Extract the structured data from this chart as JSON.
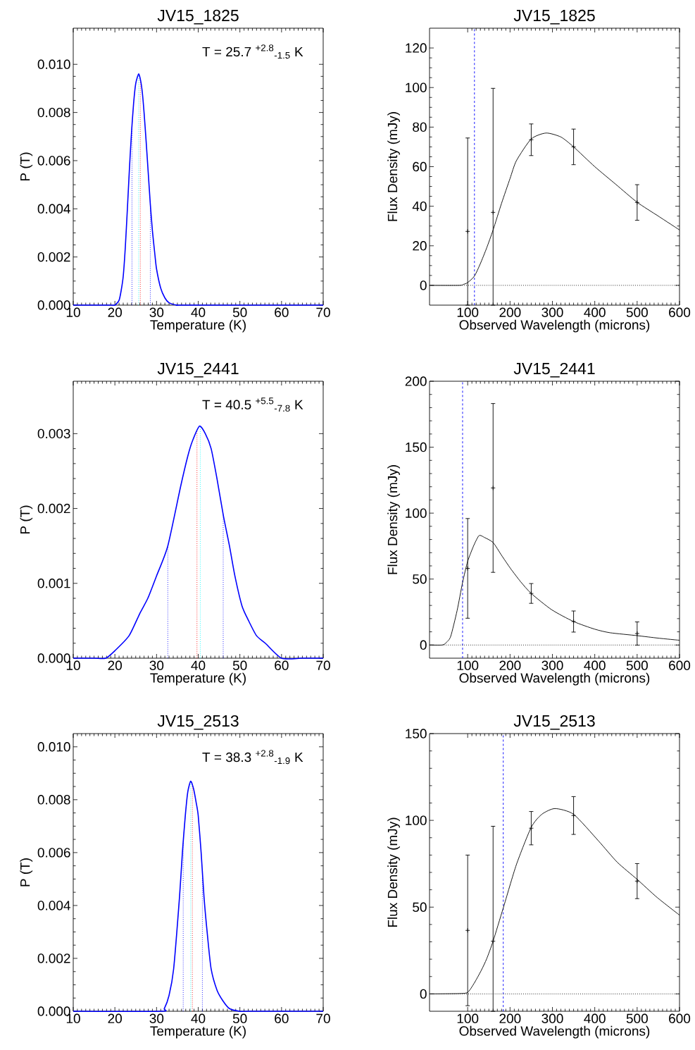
{
  "chart_data": [
    {
      "type": "line",
      "title": "JV15_1825",
      "xlabel": "Temperature (K)",
      "ylabel": "P (T)",
      "xlim": [
        10,
        70
      ],
      "ylim": [
        0,
        0.0115
      ],
      "xticks": [
        10,
        20,
        30,
        40,
        50,
        60,
        70
      ],
      "yticks": [
        {
          "value": 0,
          "label": "0.000"
        },
        {
          "value": 0.002,
          "label": "0.002"
        },
        {
          "value": 0.004,
          "label": "0.004"
        },
        {
          "value": 0.006,
          "label": "0.006"
        },
        {
          "value": 0.008,
          "label": "0.008"
        },
        {
          "value": 0.01,
          "label": "0.010"
        }
      ],
      "annotations": [
        "T = 25.7 $^{+2.8}$$_{-1.5}$ K"
      ],
      "series": [
        {
          "color": "#0000ff",
          "x": [
            10,
            19,
            20,
            21,
            21.5,
            22,
            22.5,
            23,
            23.5,
            24,
            24.5,
            25,
            25.7,
            26.2,
            26.6,
            27,
            27.5,
            28,
            28.5,
            29,
            29.6,
            30,
            31,
            32,
            33,
            35,
            37,
            70
          ],
          "values": [
            0,
            0,
            0,
            0.0002,
            0.0006,
            0.0012,
            0.0024,
            0.004,
            0.0057,
            0.0072,
            0.0084,
            0.0092,
            0.0096,
            0.0093,
            0.0088,
            0.008,
            0.0068,
            0.0055,
            0.0042,
            0.0031,
            0.0021,
            0.0015,
            0.0007,
            0.0003,
            0.0001,
            0,
            0,
            0
          ]
        }
      ],
      "ref_lines": [
        {
          "axis": "x",
          "value": 24.1,
          "color": "#0000ff",
          "line_style": "dotted"
        },
        {
          "axis": "x",
          "value": 25.7,
          "color": "#00ffff",
          "line_style": "dotted"
        },
        {
          "axis": "x",
          "value": 26.1,
          "color": "#ff0000",
          "line_style": "dotted"
        },
        {
          "axis": "x",
          "value": 28.5,
          "color": "#0000ff",
          "line_style": "dotted"
        }
      ]
    },
    {
      "type": "line",
      "title": "JV15_1825",
      "xlabel": "Observed Wavelength (microns)",
      "ylabel": "Flux Density (mJy)",
      "xlim": [
        10,
        600
      ],
      "ylim": [
        -10,
        130
      ],
      "xticks": [
        100,
        200,
        300,
        400,
        500,
        600
      ],
      "yticks": [
        0,
        20,
        40,
        60,
        80,
        100,
        120
      ],
      "series": [
        {
          "type": "scatter",
          "color": "#000000",
          "marker": "cross",
          "x": [
            100,
            160,
            250,
            350,
            500
          ],
          "values": [
            27.3,
            36.9,
            73.6,
            70.0,
            41.9
          ],
          "errors": [
            [
              -10,
              74.5
            ],
            [
              -10,
              99.6
            ],
            8,
            9,
            9
          ]
        },
        {
          "color": "#000000",
          "x": [
            10,
            80,
            90,
            100,
            116,
            130,
            145,
            160,
            180,
            200,
            215,
            250,
            285,
            320,
            350,
            400,
            450,
            500,
            550,
            600
          ],
          "values": [
            0,
            0,
            0.5,
            1.4,
            4.7,
            11,
            19,
            28,
            41.5,
            54,
            63,
            74,
            77,
            75,
            70,
            60,
            51,
            42,
            35,
            28
          ]
        }
      ],
      "ref_lines": [
        {
          "axis": "x",
          "value": 116,
          "color": "#0000ff",
          "line_style": "dashed"
        },
        {
          "axis": "y",
          "value": 0,
          "color": "#000000",
          "line_style": "dotted"
        }
      ]
    },
    {
      "type": "line",
      "title": "JV15_2441",
      "xlabel": "Temperature (K)",
      "ylabel": "P (T)",
      "xlim": [
        10,
        70
      ],
      "ylim": [
        0,
        0.0037
      ],
      "xticks": [
        10,
        20,
        30,
        40,
        50,
        60,
        70
      ],
      "yticks": [
        {
          "value": 0,
          "label": "0.000"
        },
        {
          "value": 0.001,
          "label": "0.001"
        },
        {
          "value": 0.002,
          "label": "0.002"
        },
        {
          "value": 0.003,
          "label": "0.003"
        }
      ],
      "annotations": [
        "T = 40.5 $^{+5.5}$$_{-7.8}$ K"
      ],
      "series": [
        {
          "color": "#0000ff",
          "x": [
            10,
            15,
            17.8,
            20,
            23.4,
            26,
            27.9,
            30,
            32.7,
            35.8,
            37.5,
            38.6,
            40.3,
            41.7,
            43.1,
            44.5,
            46.05,
            47.5,
            48.8,
            50.5,
            52.1,
            54,
            56.1,
            60,
            65,
            70
          ],
          "values": [
            0,
            0,
            0,
            0.0001,
            0.0003,
            0.0006,
            0.0008,
            0.0011,
            0.0015,
            0.0023,
            0.0027,
            0.0029,
            0.0031,
            0.003,
            0.0028,
            0.0024,
            0.0019,
            0.0015,
            0.0011,
            0.0007,
            0.0005,
            0.0003,
            0.0002,
            0,
            0,
            0
          ]
        }
      ],
      "ref_lines": [
        {
          "axis": "x",
          "value": 32.7,
          "color": "#0000ff",
          "line_style": "dotted"
        },
        {
          "axis": "x",
          "value": 39.7,
          "color": "#ff0000",
          "line_style": "dotted"
        },
        {
          "axis": "x",
          "value": 40.5,
          "color": "#00ffff",
          "line_style": "dotted"
        },
        {
          "axis": "x",
          "value": 46.0,
          "color": "#0000ff",
          "line_style": "dotted"
        }
      ]
    },
    {
      "type": "line",
      "title": "JV15_2441",
      "xlabel": "Observed Wavelength (microns)",
      "ylabel": "Flux Density (mJy)",
      "xlim": [
        10,
        600
      ],
      "ylim": [
        -10,
        200
      ],
      "xticks": [
        100,
        200,
        300,
        400,
        500,
        600
      ],
      "yticks": [
        0,
        50,
        100,
        150,
        200
      ],
      "series": [
        {
          "type": "scatter",
          "color": "#000000",
          "marker": "cross",
          "x": [
            100,
            160,
            250,
            350,
            500
          ],
          "values": [
            58.1,
            119.1,
            39.1,
            17.8,
            8.7
          ],
          "errors": [
            37.8,
            64,
            7.5,
            8,
            8.8
          ]
        },
        {
          "color": "#000000",
          "x": [
            10,
            40,
            50,
            60,
            75,
            88,
            100,
            115,
            127,
            140,
            160,
            180,
            201,
            225,
            250,
            298,
            350,
            400,
            436,
            500,
            550,
            600
          ],
          "values": [
            0,
            0,
            2,
            6.6,
            26,
            47.4,
            63.4,
            75.9,
            83,
            81.5,
            77.7,
            68,
            58.1,
            48,
            39.1,
            26.8,
            17.8,
            12,
            9.3,
            7.1,
            5.2,
            3.6
          ]
        }
      ],
      "ref_lines": [
        {
          "axis": "x",
          "value": 88,
          "color": "#0000ff",
          "line_style": "dashed"
        },
        {
          "axis": "y",
          "value": 0,
          "color": "#000000",
          "line_style": "dotted"
        }
      ]
    },
    {
      "type": "line",
      "title": "JV15_2513",
      "xlabel": "Temperature (K)",
      "ylabel": "P (T)",
      "xlim": [
        10,
        70
      ],
      "ylim": [
        0,
        0.0105
      ],
      "xticks": [
        10,
        20,
        30,
        40,
        50,
        60,
        70
      ],
      "yticks": [
        {
          "value": 0,
          "label": "0.000"
        },
        {
          "value": 0.002,
          "label": "0.002"
        },
        {
          "value": 0.004,
          "label": "0.004"
        },
        {
          "value": 0.006,
          "label": "0.006"
        },
        {
          "value": 0.008,
          "label": "0.008"
        },
        {
          "value": 0.01,
          "label": "0.010"
        }
      ],
      "annotations": [
        "T = 38.3 $^{+2.8}$$_{-1.9}$ K"
      ],
      "series": [
        {
          "color": "#0000ff",
          "x": [
            10,
            31,
            31.85,
            33,
            34.1,
            35.5,
            36.2,
            36.9,
            37.5,
            38.2,
            38.9,
            39.5,
            40,
            40.7,
            41.4,
            42.2,
            43.1,
            44.5,
            45.9,
            47.5,
            49.9,
            52,
            70
          ],
          "values": [
            0,
            0,
            0.0001,
            0.0006,
            0.0016,
            0.0043,
            0.006,
            0.0074,
            0.0083,
            0.0087,
            0.0084,
            0.0079,
            0.0074,
            0.006,
            0.0043,
            0.0029,
            0.0016,
            0.0008,
            0.0004,
            0.0001,
            0,
            0,
            0
          ]
        }
      ],
      "ref_lines": [
        {
          "axis": "x",
          "value": 36.4,
          "color": "#0000ff",
          "line_style": "dotted"
        },
        {
          "axis": "x",
          "value": 38.2,
          "color": "#00ffff",
          "line_style": "dotted"
        },
        {
          "axis": "x",
          "value": 38.6,
          "color": "#ff0000",
          "line_style": "dotted"
        },
        {
          "axis": "x",
          "value": 41.0,
          "color": "#0000ff",
          "line_style": "dotted"
        }
      ]
    },
    {
      "type": "line",
      "title": "JV15_2513",
      "xlabel": "Observed Wavelength (microns)",
      "ylabel": "Flux Density (mJy)",
      "xlim": [
        10,
        600
      ],
      "ylim": [
        -10,
        150
      ],
      "xticks": [
        100,
        200,
        300,
        400,
        500,
        600
      ],
      "yticks": [
        0,
        50,
        100,
        150
      ],
      "series": [
        {
          "type": "scatter",
          "color": "#000000",
          "marker": "cross",
          "x": [
            100,
            160,
            250,
            350,
            500
          ],
          "values": [
            36.6,
            30.4,
            95.5,
            102.8,
            65.0
          ],
          "errors": [
            43.4,
            [
              -10,
              96.6
            ],
            9.6,
            10.9,
            10.1
          ]
        },
        {
          "color": "#000000",
          "x": [
            10,
            80,
            100,
            115,
            132,
            145,
            160,
            184,
            215,
            250,
            275,
            306,
            350,
            409,
            453,
            500,
            547,
            600
          ],
          "values": [
            0,
            0.2,
            0.9,
            6,
            13.5,
            20.3,
            30.4,
            49.5,
            74.5,
            96,
            103.5,
            106.8,
            103.5,
            88.1,
            75.9,
            66,
            55.6,
            45.4
          ]
        }
      ],
      "ref_lines": [
        {
          "axis": "x",
          "value": 184,
          "color": "#0000ff",
          "line_style": "dashed"
        },
        {
          "axis": "y",
          "value": 0,
          "color": "#000000",
          "line_style": "dotted"
        }
      ]
    }
  ]
}
